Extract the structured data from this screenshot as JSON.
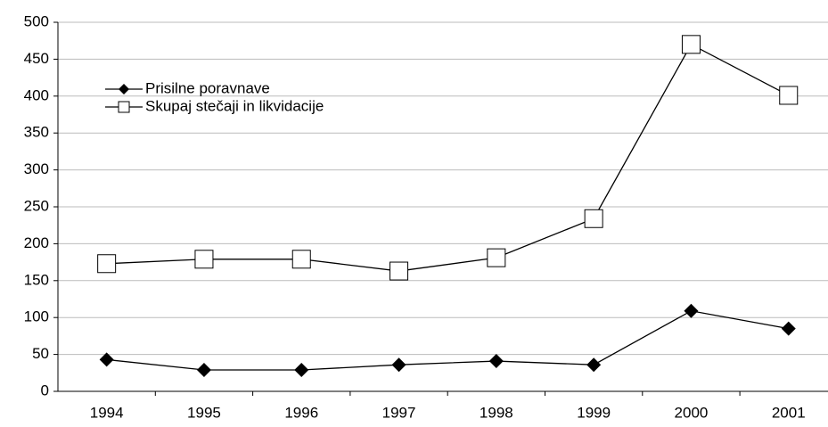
{
  "chart_data": {
    "type": "line",
    "categories": [
      "1994",
      "1995",
      "1996",
      "1997",
      "1998",
      "1999",
      "2000",
      "2001"
    ],
    "series": [
      {
        "name": "Prisilne  poravnave",
        "color": "#000000",
        "marker": "diamond",
        "values": [
          43,
          29,
          29,
          36,
          41,
          36,
          109,
          85
        ]
      },
      {
        "name": "Skupaj stečaji in likvidacije",
        "color": "#000000",
        "marker": "square",
        "values": [
          173,
          179,
          179,
          163,
          181,
          234,
          470,
          401
        ]
      }
    ],
    "ylim": [
      0,
      500
    ],
    "yticks": [
      0,
      50,
      100,
      150,
      200,
      250,
      300,
      350,
      400,
      450,
      500
    ],
    "grid": true,
    "legend": "upper left"
  }
}
